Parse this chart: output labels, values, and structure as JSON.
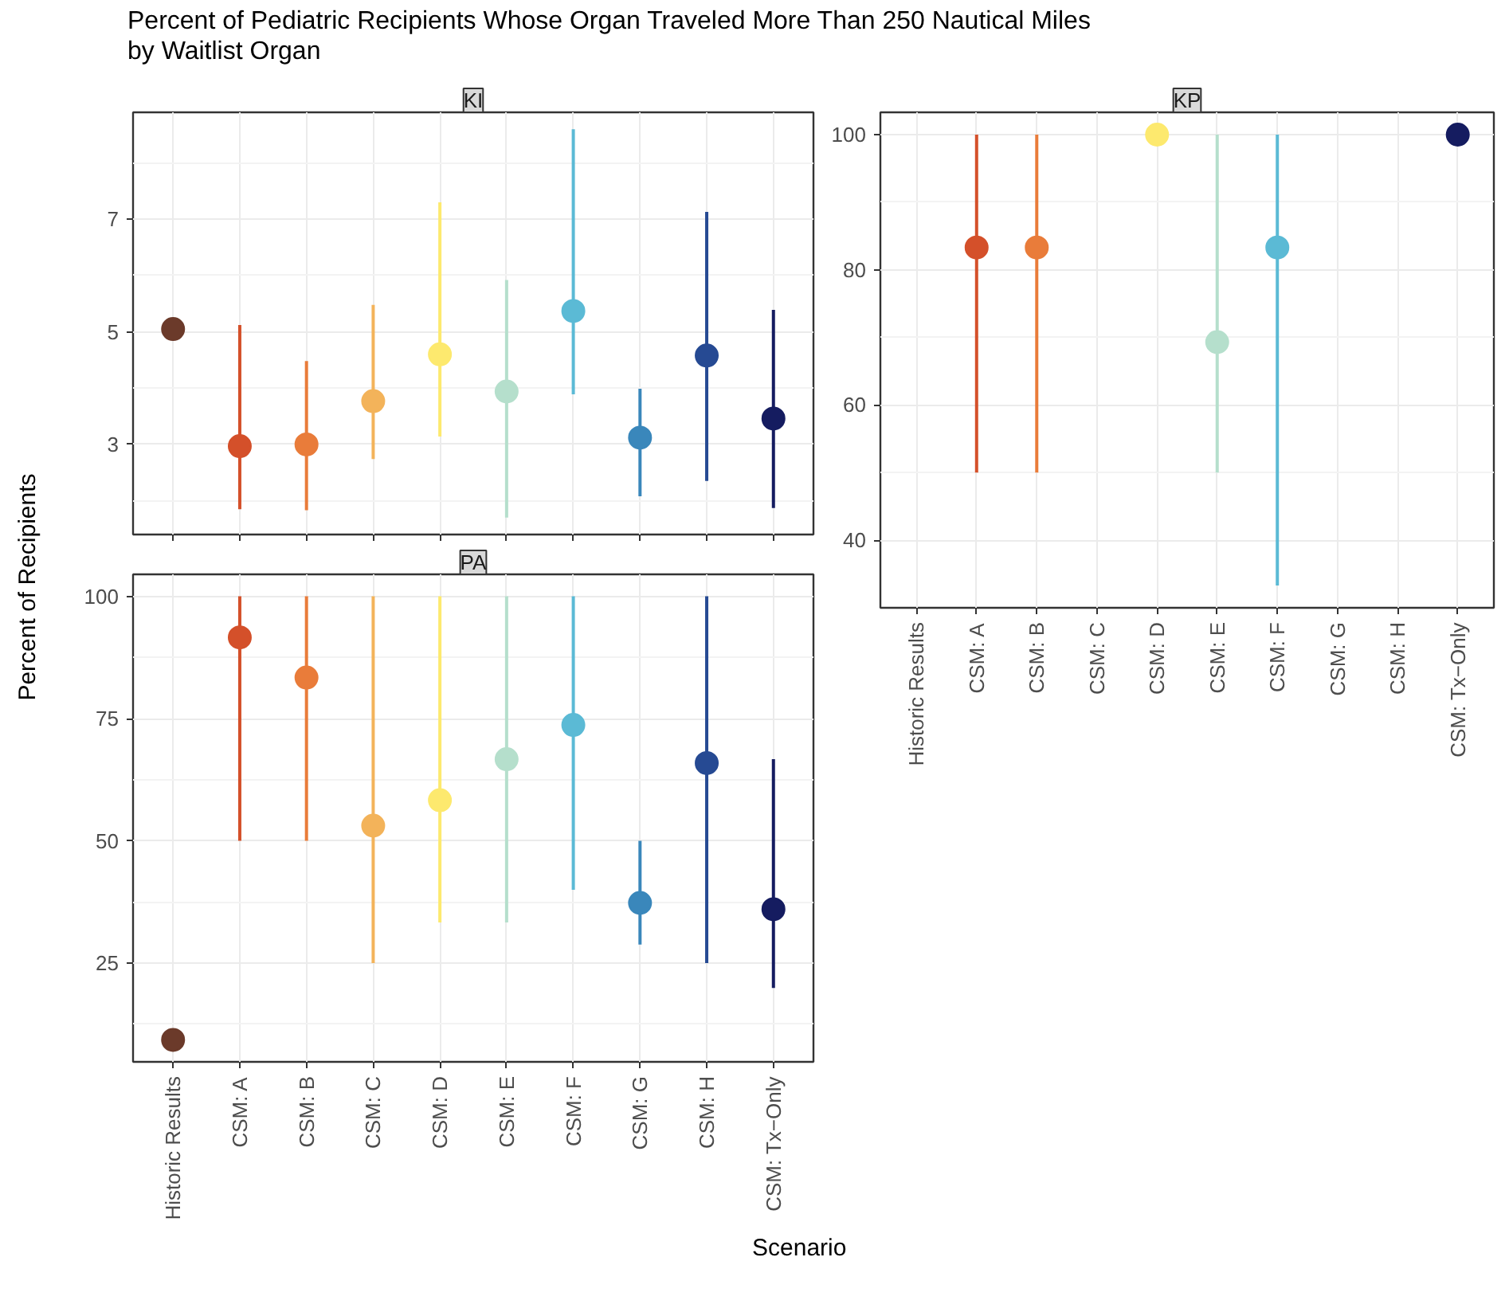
{
  "chart_data": [
    {
      "type": "scatter",
      "title": "Percent of Pediatric Recipients Whose Organ Traveled More Than 250 Nautical Miles\nby Waitlist Organ",
      "subtitle": "KI",
      "ylabel": "Percent of Recipients",
      "categories": [
        null,
        null,
        null,
        null,
        null,
        null,
        null,
        null,
        null,
        null
      ],
      "values": [
        5.05,
        2.97,
        3.0,
        3.77,
        4.6,
        3.94,
        5.37,
        3.12,
        4.58,
        3.46
      ],
      "errors": [
        null,
        [
          1.85,
          5.12
        ],
        [
          1.83,
          4.48
        ],
        [
          2.74,
          5.48
        ],
        [
          3.14,
          7.3
        ],
        [
          1.7,
          5.92
        ],
        [
          3.89,
          8.6
        ],
        [
          2.08,
          3.99
        ],
        [
          2.35,
          7.13
        ],
        [
          1.87,
          5.39
        ]
      ],
      "colors": [
        "#6b3a2a",
        "#d4502a",
        "#e97c3a",
        "#f3b35a",
        "#fde96e",
        "#b5dfcc",
        "#5bbad5",
        "#3a87bb",
        "#264a93",
        "#151c60"
      ],
      "ylim": [
        1.4,
        8.9
      ],
      "yticks": [
        3,
        5,
        7
      ],
      "grid": true,
      "marker": "circle",
      "tick_labels": "y"
    },
    {
      "type": "scatter",
      "subtitle": "KP",
      "categories": [
        "Historic Results",
        "CSM: A",
        "CSM: B",
        "CSM: C",
        "CSM: D",
        "CSM: E",
        "CSM: F",
        "CSM: G",
        "CSM: H",
        "CSM: Tx−Only"
      ],
      "values": [
        null,
        83.3,
        83.3,
        null,
        100,
        69.3,
        83.3,
        null,
        null,
        100
      ],
      "errors": [
        null,
        [
          50,
          100
        ],
        [
          50,
          100
        ],
        null,
        null,
        [
          50,
          100
        ],
        [
          33.3,
          100
        ],
        null,
        null,
        null
      ],
      "colors": [
        "#6b3a2a",
        "#d4502a",
        "#e97c3a",
        "#f3b35a",
        "#fde96e",
        "#b5dfcc",
        "#5bbad5",
        "#3a87bb",
        "#264a93",
        "#151c60"
      ],
      "ylim": [
        30,
        103.3
      ],
      "yticks": [
        40,
        60,
        80,
        100
      ],
      "grid": true,
      "marker": "circle"
    },
    {
      "type": "scatter",
      "subtitle": "PA",
      "xlabel": "Scenario",
      "categories": [
        "Historic Results",
        "CSM: A",
        "CSM: B",
        "CSM: C",
        "CSM: D",
        "CSM: E",
        "CSM: F",
        "CSM: G",
        "CSM: H",
        "CSM: Tx−Only"
      ],
      "values": [
        9.3,
        91.6,
        83.4,
        53.1,
        58.3,
        66.7,
        73.7,
        37.3,
        65.9,
        36.0
      ],
      "errors": [
        null,
        [
          50,
          100
        ],
        [
          50,
          100
        ],
        [
          25,
          100
        ],
        [
          33.3,
          100
        ],
        [
          33.3,
          100
        ],
        [
          40,
          100
        ],
        [
          28.8,
          50
        ],
        [
          25,
          100
        ],
        [
          19.9,
          66.7
        ]
      ],
      "colors": [
        "#6b3a2a",
        "#d4502a",
        "#e97c3a",
        "#f3b35a",
        "#fde96e",
        "#b5dfcc",
        "#5bbad5",
        "#3a87bb",
        "#264a93",
        "#151c60"
      ],
      "ylim": [
        4.8,
        104.5
      ],
      "yticks": [
        25,
        50,
        75,
        100
      ],
      "grid": true,
      "marker": "circle"
    }
  ]
}
